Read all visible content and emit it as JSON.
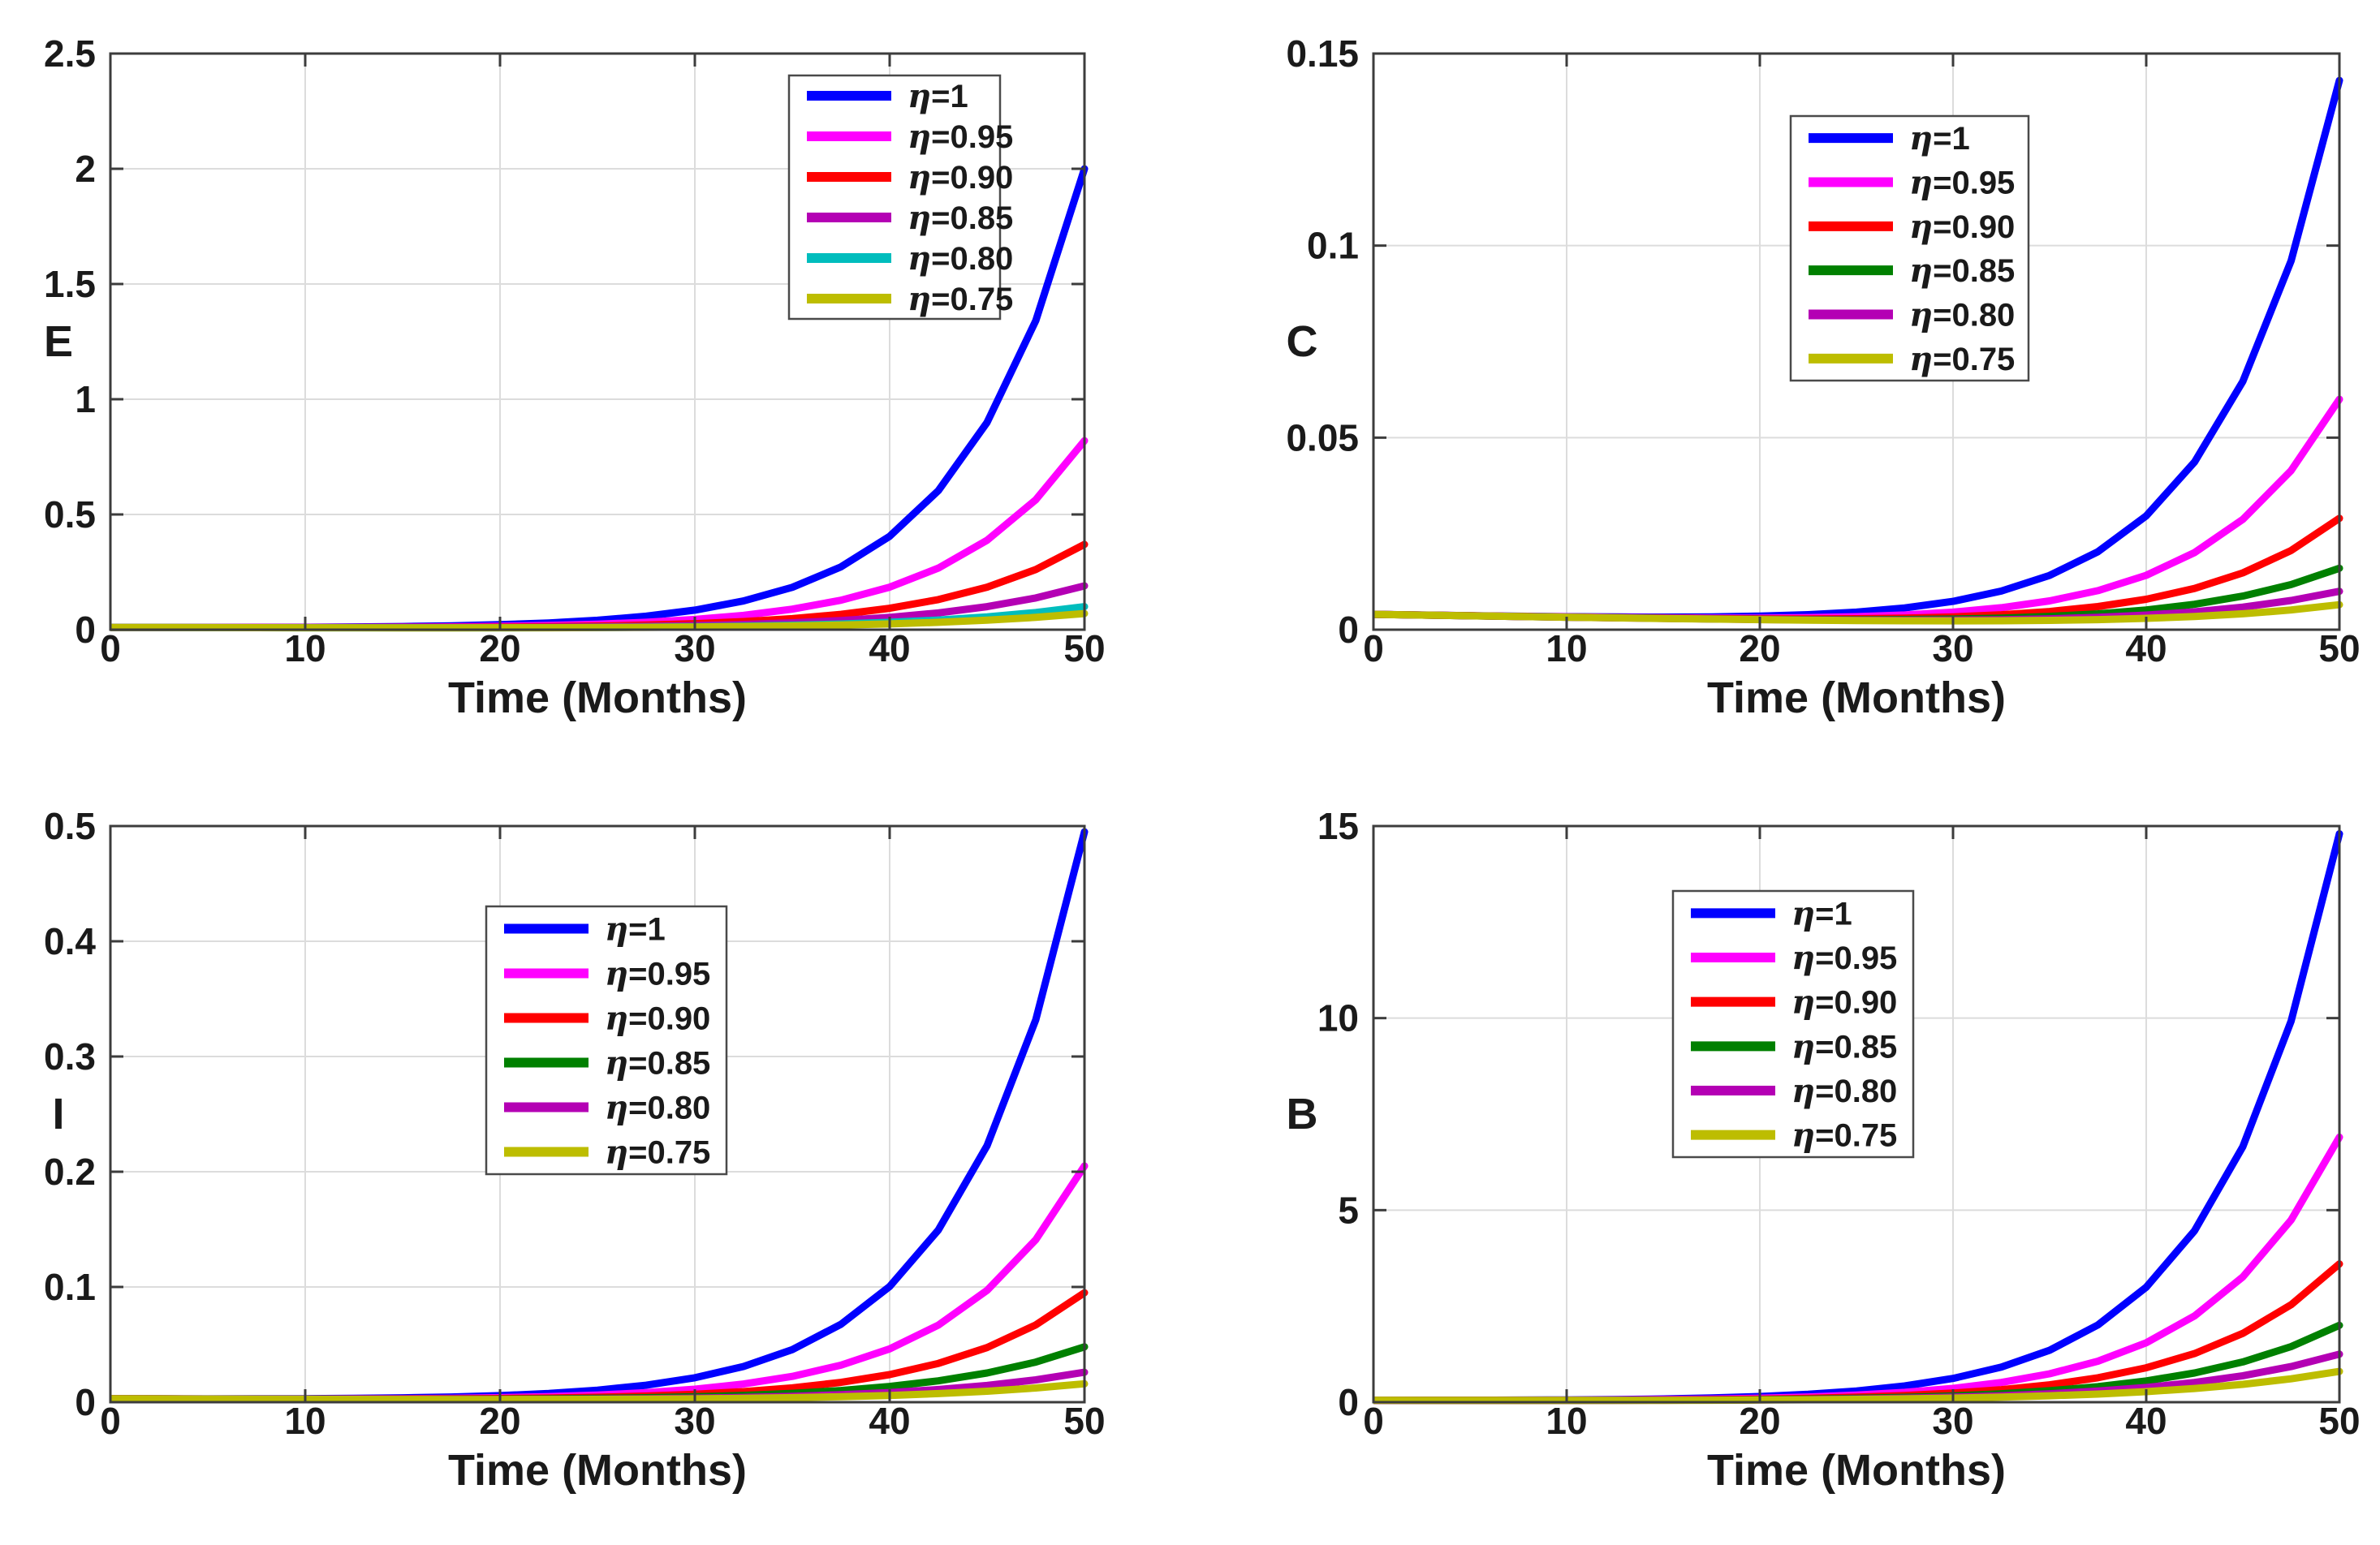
{
  "figure": {
    "background": "#FFFFFF",
    "rows": 2,
    "columns": 2
  },
  "xlabel": "Time (Months)",
  "x_tick_labels": [
    "0",
    "10",
    "20",
    "30",
    "40",
    "50"
  ],
  "x_ticks": [
    0,
    10,
    20,
    30,
    40,
    50
  ],
  "x_months": [
    0,
    2.5,
    5,
    7.5,
    10,
    12.5,
    15,
    17.5,
    20,
    22.5,
    25,
    27.5,
    30,
    32.5,
    35,
    37.5,
    40,
    42.5,
    45,
    47.5,
    50
  ],
  "legend_labels": [
    "η=1",
    "η=0.95",
    "η=0.90",
    "η=0.85",
    "η=0.80",
    "η=0.75"
  ],
  "palette": {
    "blue": "#0000FF",
    "magenta": "#FF00FF",
    "red": "#FF0000",
    "green": "#008000",
    "purple": "#B400B4",
    "cyan": "#00BDBD",
    "olive": "#BDBD00",
    "axis": "#3C3C3C",
    "grid": "#DCDCDC",
    "text": "#1A1A1A"
  },
  "chart_data": [
    {
      "id": "E",
      "type": "line",
      "ylabel": "E",
      "xlabel": "Time (Months)",
      "xlim": [
        0,
        50
      ],
      "ylim": [
        0,
        2.5
      ],
      "yticks": [
        0,
        0.5,
        1,
        1.5,
        2,
        2.5
      ],
      "ytick_labels": [
        "0",
        "0.5",
        "1",
        "1.5",
        "2",
        "2.5"
      ],
      "grid": "on",
      "legend_position": "upper-right-inside",
      "series": [
        {
          "name": "η=1",
          "color": "#0000FF",
          "values": [
            0.01,
            0.0098,
            0.0098,
            0.0101,
            0.0107,
            0.0118,
            0.0137,
            0.0169,
            0.0218,
            0.0294,
            0.041,
            0.0585,
            0.0849,
            0.1245,
            0.1838,
            0.2726,
            0.4053,
            0.6034,
            0.8993,
            1.3409,
            2.0
          ]
        },
        {
          "name": "η=0.95",
          "color": "#FF00FF",
          "values": [
            0.01,
            0.0097,
            0.0095,
            0.0094,
            0.0096,
            0.01,
            0.0109,
            0.0123,
            0.0147,
            0.0183,
            0.0238,
            0.0321,
            0.0444,
            0.0625,
            0.089,
            0.1279,
            0.1846,
            0.2674,
            0.3881,
            0.5638,
            0.82
          ]
        },
        {
          "name": "η=0.90",
          "color": "#FF0000",
          "values": [
            0.01,
            0.0096,
            0.0093,
            0.0091,
            0.009,
            0.0091,
            0.0094,
            0.0101,
            0.0112,
            0.013,
            0.0158,
            0.02,
            0.0262,
            0.0351,
            0.048,
            0.0665,
            0.093,
            0.1307,
            0.1845,
            0.261,
            0.37
          ]
        },
        {
          "name": "η=0.85",
          "color": "#B400B4",
          "values": [
            0.01,
            0.0096,
            0.0093,
            0.009,
            0.0088,
            0.0087,
            0.0087,
            0.009,
            0.0096,
            0.0105,
            0.0121,
            0.0144,
            0.0178,
            0.0228,
            0.0298,
            0.0397,
            0.0536,
            0.073,
            0.1001,
            0.1377,
            0.19
          ]
        },
        {
          "name": "η=0.80",
          "color": "#00BDBD",
          "values": [
            0.01,
            0.0096,
            0.0092,
            0.0089,
            0.0086,
            0.0084,
            0.0083,
            0.0083,
            0.0085,
            0.0089,
            0.0097,
            0.011,
            0.0128,
            0.0155,
            0.0193,
            0.0246,
            0.0319,
            0.042,
            0.0558,
            0.0745,
            0.1
          ]
        },
        {
          "name": "η=0.75",
          "color": "#BDBD00",
          "values": [
            0.01,
            0.0096,
            0.0092,
            0.0088,
            0.0086,
            0.0083,
            0.0082,
            0.0082,
            0.0083,
            0.0086,
            0.0092,
            0.0101,
            0.0115,
            0.0135,
            0.0162,
            0.02,
            0.0251,
            0.032,
            0.0413,
            0.0535,
            0.07
          ]
        }
      ]
    },
    {
      "id": "C",
      "type": "line",
      "ylabel": "C",
      "xlabel": "Time (Months)",
      "xlim": [
        0,
        50
      ],
      "ylim": [
        0,
        0.15
      ],
      "yticks": [
        0,
        0.05,
        0.1,
        0.15
      ],
      "ytick_labels": [
        "0",
        "0.05",
        "0.1",
        "0.15"
      ],
      "grid": "on",
      "legend_position": "upper-right-inside",
      "series": [
        {
          "name": "η=1",
          "color": "#0000FF",
          "values": [
            0.004,
            0.00382,
            0.00366,
            0.00351,
            0.00339,
            0.00331,
            0.00328,
            0.00334,
            0.00353,
            0.00391,
            0.00457,
            0.00566,
            0.00738,
            0.01005,
            0.01413,
            0.02031,
            0.02963,
            0.04364,
            0.06463,
            0.09604,
            0.143
          ]
        },
        {
          "name": "η=0.95",
          "color": "#FF00FF",
          "values": [
            0.004,
            0.00382,
            0.00364,
            0.00347,
            0.00332,
            0.00318,
            0.00308,
            0.00303,
            0.00303,
            0.00314,
            0.00338,
            0.00382,
            0.00456,
            0.00572,
            0.00749,
            0.01017,
            0.01416,
            0.02006,
            0.02872,
            0.04142,
            0.06
          ]
        },
        {
          "name": "η=0.90",
          "color": "#FF0000",
          "values": [
            0.004,
            0.00381,
            0.00363,
            0.00345,
            0.00328,
            0.00313,
            0.00299,
            0.00288,
            0.00281,
            0.00279,
            0.00285,
            0.00302,
            0.00334,
            0.00388,
            0.00473,
            0.00602,
            0.00793,
            0.01073,
            0.01479,
            0.02062,
            0.029
          ]
        },
        {
          "name": "η=0.85",
          "color": "#008000",
          "values": [
            0.004,
            0.00381,
            0.00362,
            0.00344,
            0.00326,
            0.0031,
            0.00295,
            0.00281,
            0.0027,
            0.00263,
            0.0026,
            0.00264,
            0.00277,
            0.00302,
            0.00346,
            0.00413,
            0.00514,
            0.00662,
            0.00874,
            0.01175,
            0.016
          ]
        },
        {
          "name": "η=0.80",
          "color": "#B400B4",
          "values": [
            0.004,
            0.00381,
            0.00362,
            0.00344,
            0.00326,
            0.00309,
            0.00293,
            0.00278,
            0.00265,
            0.00255,
            0.00247,
            0.00245,
            0.00249,
            0.0026,
            0.00283,
            0.00321,
            0.0038,
            0.00465,
            0.00588,
            0.0076,
            0.01
          ]
        },
        {
          "name": "η=0.75",
          "color": "#BDBD00",
          "values": [
            0.004,
            0.00381,
            0.00362,
            0.00343,
            0.00325,
            0.00308,
            0.00291,
            0.00276,
            0.00261,
            0.00249,
            0.00239,
            0.00232,
            0.0023,
            0.00233,
            0.00243,
            0.00262,
            0.00295,
            0.00343,
            0.00414,
            0.00513,
            0.0065
          ]
        }
      ]
    },
    {
      "id": "I",
      "type": "line",
      "ylabel": "I",
      "xlabel": "Time (Months)",
      "xlim": [
        0,
        50
      ],
      "ylim": [
        0,
        0.5
      ],
      "yticks": [
        0,
        0.1,
        0.2,
        0.3,
        0.4,
        0.5
      ],
      "ytick_labels": [
        "0",
        "0.1",
        "0.2",
        "0.3",
        "0.4",
        "0.5"
      ],
      "grid": "on",
      "legend_position": "upper-middle-inside",
      "series": [
        {
          "name": "η=1",
          "color": "#0000FF",
          "values": [
            0.003,
            0.00293,
            0.0029,
            0.00294,
            0.00306,
            0.00331,
            0.00377,
            0.00452,
            0.00571,
            0.00757,
            0.0104,
            0.01471,
            0.02122,
            0.031,
            0.04565,
            0.0676,
            0.10041,
            0.14943,
            0.22263,
            0.3319,
            0.495
          ]
        },
        {
          "name": "η=0.95",
          "color": "#FF00FF",
          "values": [
            0.003,
            0.0029,
            0.00283,
            0.00279,
            0.0028,
            0.00288,
            0.00306,
            0.0034,
            0.00397,
            0.00485,
            0.00621,
            0.00826,
            0.0113,
            0.0158,
            0.02241,
            0.03209,
            0.04625,
            0.06693,
            0.09707,
            0.14099,
            0.205
          ]
        },
        {
          "name": "η=0.90",
          "color": "#FF0000",
          "values": [
            0.003,
            0.00289,
            0.00279,
            0.00271,
            0.00267,
            0.00266,
            0.00272,
            0.00287,
            0.00314,
            0.00359,
            0.00429,
            0.00534,
            0.0069,
            0.00917,
            0.01246,
            0.01719,
            0.02396,
            0.03363,
            0.04742,
            0.06703,
            0.095
          ]
        },
        {
          "name": "η=0.85",
          "color": "#008000",
          "values": [
            0.003,
            0.00288,
            0.00277,
            0.00267,
            0.00259,
            0.00255,
            0.00254,
            0.00258,
            0.0027,
            0.00292,
            0.00329,
            0.00386,
            0.0047,
            0.00592,
            0.00767,
            0.01014,
            0.01363,
            0.01851,
            0.02532,
            0.03481,
            0.048
          ]
        },
        {
          "name": "η=0.80",
          "color": "#B400B4",
          "values": [
            0.003,
            0.00287,
            0.00275,
            0.00264,
            0.00255,
            0.00248,
            0.00243,
            0.00241,
            0.00245,
            0.00255,
            0.00273,
            0.00304,
            0.0035,
            0.00418,
            0.00514,
            0.0065,
            0.00839,
            0.01098,
            0.01454,
            0.01939,
            0.026
          ]
        },
        {
          "name": "η=0.75",
          "color": "#BDBD00",
          "values": [
            0.003,
            0.00287,
            0.00275,
            0.00263,
            0.00253,
            0.00244,
            0.00238,
            0.00233,
            0.00233,
            0.00236,
            0.00246,
            0.00264,
            0.00291,
            0.00333,
            0.00392,
            0.00475,
            0.00588,
            0.00743,
            0.0095,
            0.01229,
            0.016
          ]
        }
      ]
    },
    {
      "id": "B",
      "type": "line",
      "ylabel": "B",
      "xlabel": "Time (Months)",
      "xlim": [
        0,
        50
      ],
      "ylim": [
        0,
        15
      ],
      "yticks": [
        0,
        5,
        10,
        15
      ],
      "ytick_labels": [
        "0",
        "5",
        "10",
        "15"
      ],
      "grid": "on",
      "legend_position": "upper-middle-inside",
      "series": [
        {
          "name": "η=1",
          "color": "#0000FF",
          "values": [
            0.05,
            0.0499,
            0.0511,
            0.054,
            0.0596,
            0.0692,
            0.0848,
            0.1092,
            0.1469,
            0.2043,
            0.2912,
            0.4221,
            0.6185,
            0.9128,
            1.3531,
            2.0112,
            2.9941,
            4.4617,
            6.6523,
            9.9216,
            14.8
          ]
        },
        {
          "name": "η=0.95",
          "color": "#FF00FF",
          "values": [
            0.05,
            0.0492,
            0.0493,
            0.0504,
            0.0533,
            0.0586,
            0.0674,
            0.0814,
            0.1029,
            0.1353,
            0.1835,
            0.2549,
            0.3599,
            0.5138,
            0.7388,
            1.0674,
            1.5466,
            2.245,
            3.2623,
            4.7428,
            6.9
          ]
        },
        {
          "name": "η=0.90",
          "color": "#FF0000",
          "values": [
            0.05,
            0.0489,
            0.0483,
            0.0486,
            0.05,
            0.0531,
            0.0585,
            0.0673,
            0.0808,
            0.1009,
            0.1305,
            0.1736,
            0.2358,
            0.3252,
            0.453,
            0.6354,
            0.8953,
            1.2648,
            1.7907,
            2.5369,
            3.6
          ]
        },
        {
          "name": "η=0.85",
          "color": "#008000",
          "values": [
            0.05,
            0.0487,
            0.0478,
            0.0475,
            0.048,
            0.0498,
            0.0532,
            0.0588,
            0.0675,
            0.0806,
            0.0997,
            0.127,
            0.1658,
            0.2204,
            0.297,
            0.4039,
            0.5529,
            0.76,
            1.0477,
            1.4465,
            2.0
          ]
        },
        {
          "name": "η=0.80",
          "color": "#B400B4",
          "values": [
            0.05,
            0.0486,
            0.0476,
            0.047,
            0.0472,
            0.0483,
            0.0507,
            0.0548,
            0.0611,
            0.0706,
            0.0843,
            0.1036,
            0.1306,
            0.1679,
            0.219,
            0.289,
            0.3843,
            0.5139,
            0.6896,
            0.9275,
            1.25
          ]
        },
        {
          "name": "η=0.75",
          "color": "#BDBD00",
          "values": [
            0.05,
            0.0485,
            0.0474,
            0.0467,
            0.0466,
            0.0472,
            0.0488,
            0.0517,
            0.0563,
            0.0632,
            0.0731,
            0.0868,
            0.1057,
            0.1314,
            0.166,
            0.2123,
            0.2741,
            0.3562,
            0.4652,
            0.6094,
            0.8
          ]
        }
      ]
    }
  ]
}
